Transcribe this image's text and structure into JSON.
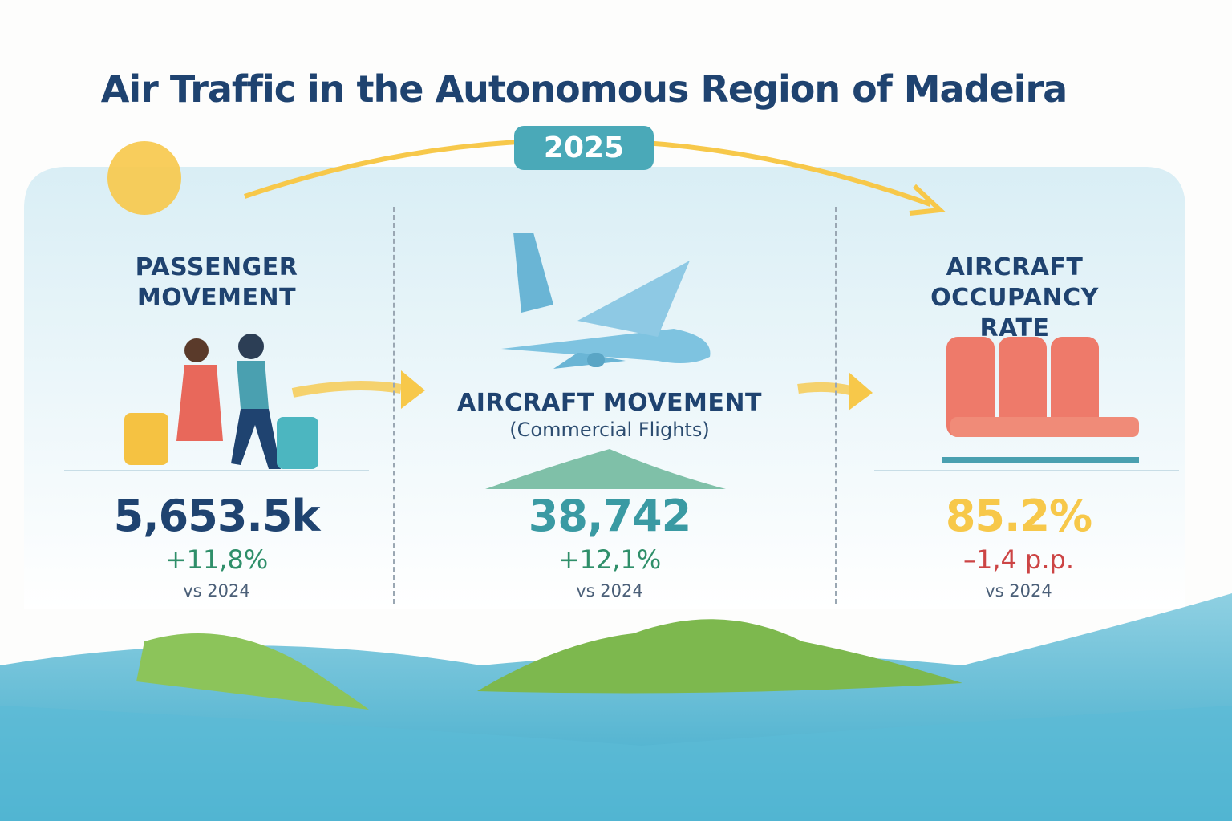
{
  "title": "Air Traffic in the Autonomous Region of Madeira",
  "year": "2025",
  "colors": {
    "navy": "#1f4370",
    "teal": "#3a9aa3",
    "yellow": "#f7c84a",
    "green": "#2f8f6a",
    "red": "#cc4545",
    "sea": "#4cb0cc"
  },
  "metrics": [
    {
      "heading": "PASSENGER MOVEMENT",
      "value": "5,653.5k",
      "change": "+11,8%",
      "comparison": "vs 2024",
      "icon": "travelers-icon"
    },
    {
      "heading": "AIRCRAFT MOVEMENT",
      "subheading": "(Commercial Flights)",
      "value": "38,742",
      "change": "+12,1%",
      "comparison": "vs 2024",
      "icon": "airplane-icon"
    },
    {
      "heading": "AIRCRAFT OCCUPANCY RATE",
      "value": "85.2%",
      "change": "–1,4 p.p.",
      "comparison": "vs 2024",
      "icon": "seats-icon"
    }
  ]
}
